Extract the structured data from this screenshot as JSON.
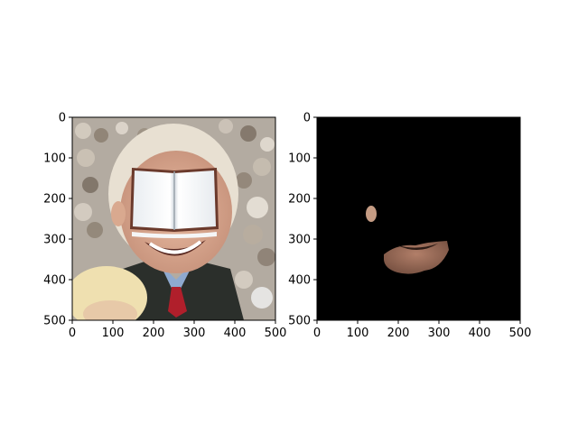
{
  "panels": [
    {
      "name": "original-with-book-overlay",
      "xlim": [
        0,
        500
      ],
      "ylim": [
        500,
        0
      ],
      "x_ticks": [
        "0",
        "100",
        "200",
        "300",
        "400",
        "500"
      ],
      "y_ticks": [
        "0",
        "100",
        "200",
        "300",
        "400",
        "500"
      ],
      "content": "photo of smiling older man in crowd, face covered by an open book image"
    },
    {
      "name": "skin-segmentation-mask",
      "xlim": [
        0,
        500
      ],
      "ylim": [
        500,
        0
      ],
      "x_ticks": [
        "0",
        "100",
        "200",
        "300",
        "400",
        "500"
      ],
      "y_ticks": [
        "0",
        "100",
        "200",
        "300",
        "400",
        "500"
      ],
      "content": "black background with visible skin regions (ear and chin/mouth)"
    }
  ],
  "colors": {
    "crowd": "#b9b0a4",
    "skin": "#d3a38a",
    "hair": "#e8e0d2",
    "suit": "#2b2f2b",
    "tie": "#b01f2b",
    "mask_bg": "#000000",
    "mask_skin": "#9c6b55"
  }
}
